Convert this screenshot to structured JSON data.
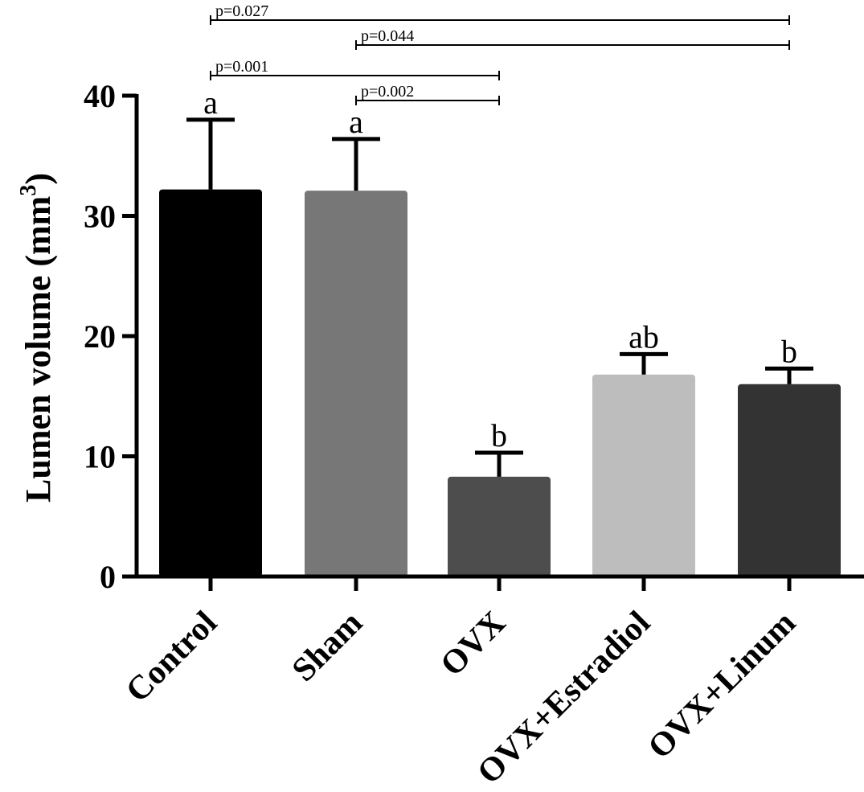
{
  "chart_data": {
    "type": "bar",
    "ylabel": "Lumen volume (mm",
    "ylabel_sup": "3",
    "ylabel_close": ")",
    "ylim": [
      0,
      40
    ],
    "yticks": [
      0,
      10,
      20,
      30,
      40
    ],
    "categories": [
      "Control",
      "Sham",
      "OVX",
      "OVX+Estradiol",
      "OVX+Linum"
    ],
    "values": [
      32.2,
      32.1,
      8.3,
      16.8,
      16.0
    ],
    "errors": [
      5.8,
      4.3,
      2.0,
      1.7,
      1.3
    ],
    "colors": [
      "#000000",
      "#777777",
      "#4d4d4d",
      "#bdbdbd",
      "#333333"
    ],
    "letters": [
      "a",
      "a",
      "b",
      "ab",
      "b"
    ],
    "comparisons": [
      {
        "from": 0,
        "to": 4,
        "label": "p=0.027"
      },
      {
        "from": 1,
        "to": 4,
        "label": "p=0.044"
      },
      {
        "from": 0,
        "to": 2,
        "label": "p=0.001"
      },
      {
        "from": 1,
        "to": 2,
        "label": "p=0.002"
      }
    ],
    "grid": false,
    "legend": "none"
  }
}
